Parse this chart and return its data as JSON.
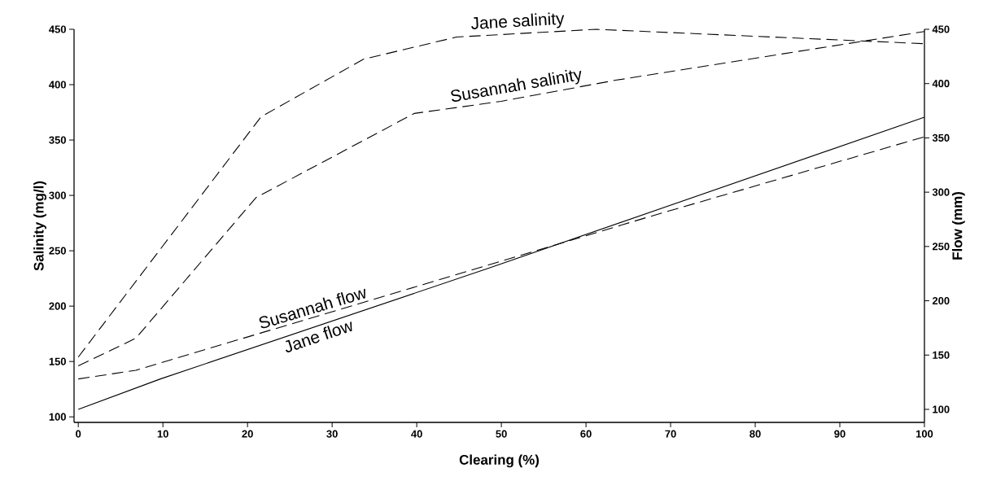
{
  "chart_data": {
    "type": "line",
    "xlabel": "Clearing (%)",
    "ylabel": "Salinity (mg/l)",
    "y2label": "Flow (mm)",
    "xlim": [
      -0.5,
      100
    ],
    "xticks": [
      0,
      10,
      20,
      30,
      40,
      50,
      60,
      70,
      80,
      90,
      100
    ],
    "ylim": [
      95,
      450
    ],
    "yticks": [
      100,
      150,
      200,
      250,
      300,
      350,
      400,
      450
    ],
    "y2lim": [
      88,
      450
    ],
    "y2ticks": [
      100,
      150,
      200,
      250,
      300,
      350,
      400,
      450
    ],
    "grid": false,
    "marker": "none",
    "series": [
      {
        "name": "Jane salinity",
        "color": "#000000",
        "line_style": "dashed",
        "x": [
          0,
          21.6,
          33.7,
          44.7,
          61.2,
          100
        ],
        "values": [
          154,
          371,
          423,
          443,
          450,
          437
        ]
      },
      {
        "name": "Susannah salinity",
        "color": "#000000",
        "line_style": "dashed",
        "x": [
          0,
          6.8,
          21,
          39.7,
          50,
          63.5,
          100
        ],
        "values": [
          146,
          171,
          298,
          374,
          385,
          404,
          448
        ]
      },
      {
        "name": "Susannah flow",
        "color": "#000000",
        "line_style": "dashed",
        "axis": "y2",
        "x": [
          0,
          6.8,
          40.8,
          67.3,
          100
        ],
        "values": [
          128,
          136,
          215,
          277,
          351
        ]
      },
      {
        "name": "Jane flow",
        "color": "#000000",
        "line_style": "solid",
        "axis": "y2",
        "x": [
          0,
          9.7,
          48.5,
          100
        ],
        "values": [
          100,
          128,
          230,
          369
        ]
      }
    ]
  }
}
